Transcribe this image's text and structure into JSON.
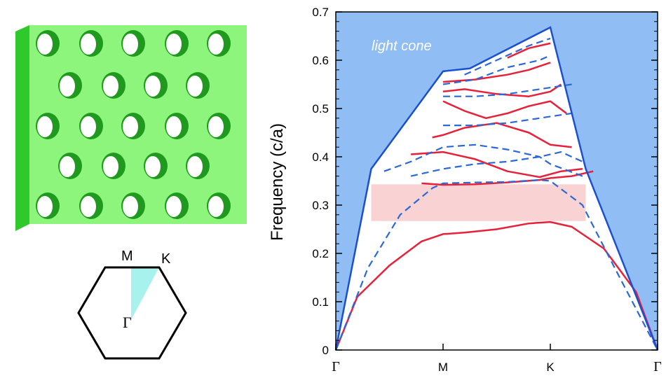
{
  "chart_data": {
    "type": "line",
    "title": "",
    "xlabel": "",
    "ylabel": "Frequency  (c/a)",
    "ylim": [
      0,
      0.7
    ],
    "yticks": [
      "0",
      "0.1",
      "0.2",
      "0.3",
      "0.4",
      "0.5",
      "0.6",
      "0.7"
    ],
    "k_points": [
      {
        "label": "Γ",
        "pos": 0,
        "greek": true
      },
      {
        "label": "M",
        "pos": 1,
        "greek": false
      },
      {
        "label": "K",
        "pos": 2,
        "greek": false
      },
      {
        "label": "Γ",
        "pos": 3,
        "greek": true
      }
    ],
    "light_cone": {
      "label": "light cone",
      "color": "#8fbdf4",
      "edge": [
        [
          0,
          0
        ],
        [
          0.33,
          0.375
        ],
        [
          1,
          0.577
        ],
        [
          1.25,
          0.583
        ],
        [
          1.55,
          0.617
        ],
        [
          2,
          0.668
        ],
        [
          2.33,
          0.375
        ],
        [
          3,
          0
        ]
      ]
    },
    "band_gap": {
      "range": [
        0.267,
        0.343
      ],
      "x_range": [
        0.33,
        2.33
      ],
      "color": "#f9d3d3"
    },
    "series": [
      {
        "style": "solid",
        "color": "#e8213a",
        "x": [
          0,
          0.2,
          0.5,
          0.8,
          1.0,
          1.2,
          1.5,
          1.8,
          2.0,
          2.2,
          2.5,
          2.8,
          3.0
        ],
        "y": [
          0,
          0.11,
          0.175,
          0.225,
          0.24,
          0.243,
          0.25,
          0.262,
          0.265,
          0.255,
          0.21,
          0.12,
          0
        ]
      },
      {
        "style": "solid",
        "color": "#e8213a",
        "x": [
          0.8,
          1.0,
          1.3,
          1.6,
          1.9,
          2.0,
          2.2,
          2.4
        ],
        "y": [
          0.345,
          0.342,
          0.343,
          0.347,
          0.352,
          0.356,
          0.36,
          0.37
        ]
      },
      {
        "style": "solid",
        "color": "#e8213a",
        "x": [
          0.7,
          1.0,
          1.3,
          1.6,
          1.9,
          2.1,
          2.3
        ],
        "y": [
          0.405,
          0.41,
          0.395,
          0.37,
          0.358,
          0.37,
          0.375
        ]
      },
      {
        "style": "solid",
        "color": "#e8213a",
        "x": [
          0.9,
          1.0,
          1.2,
          1.5,
          1.8,
          2.0,
          2.2
        ],
        "y": [
          0.44,
          0.445,
          0.46,
          0.47,
          0.45,
          0.425,
          0.42
        ]
      },
      {
        "style": "solid",
        "color": "#e8213a",
        "x": [
          1.0,
          1.2,
          1.4,
          1.6,
          1.8,
          2.0,
          2.15
        ],
        "y": [
          0.515,
          0.495,
          0.48,
          0.49,
          0.505,
          0.515,
          0.49
        ]
      },
      {
        "style": "solid",
        "color": "#e8213a",
        "x": [
          1.0,
          1.2,
          1.5,
          1.8,
          2.0,
          2.1
        ],
        "y": [
          0.535,
          0.54,
          0.53,
          0.525,
          0.535,
          0.55
        ]
      },
      {
        "style": "solid",
        "color": "#e8213a",
        "x": [
          1.0,
          1.3,
          1.6,
          1.8,
          2.0
        ],
        "y": [
          0.555,
          0.56,
          0.57,
          0.58,
          0.595
        ]
      },
      {
        "style": "solid",
        "color": "#e8213a",
        "x": [
          1.6,
          1.8,
          2.0
        ],
        "y": [
          0.605,
          0.625,
          0.635
        ]
      },
      {
        "style": "dashed",
        "color": "#2b68d8",
        "x": [
          0,
          0.3,
          0.6,
          0.9,
          1.0,
          1.3,
          1.6,
          1.9,
          2.0,
          2.3,
          2.6,
          3.0
        ],
        "y": [
          0,
          0.17,
          0.28,
          0.335,
          0.345,
          0.347,
          0.348,
          0.352,
          0.35,
          0.3,
          0.17,
          0
        ]
      },
      {
        "style": "dashed",
        "color": "#2b68d8",
        "x": [
          0.45,
          0.7,
          1.0,
          1.3,
          1.6,
          1.9,
          2.0,
          2.3
        ],
        "y": [
          0.37,
          0.39,
          0.42,
          0.425,
          0.415,
          0.4,
          0.385,
          0.36
        ]
      },
      {
        "style": "dashed",
        "color": "#2b68d8",
        "x": [
          0.7,
          1.0,
          1.3,
          1.6,
          1.9,
          2.1,
          2.3
        ],
        "y": [
          0.36,
          0.375,
          0.385,
          0.39,
          0.4,
          0.41,
          0.39
        ]
      },
      {
        "style": "dashed",
        "color": "#2b68d8",
        "x": [
          1.0,
          1.3,
          1.6,
          1.9,
          2.2
        ],
        "y": [
          0.465,
          0.465,
          0.47,
          0.48,
          0.49
        ]
      },
      {
        "style": "dashed",
        "color": "#2b68d8",
        "x": [
          1.0,
          1.3,
          1.6,
          1.9,
          2.2
        ],
        "y": [
          0.525,
          0.525,
          0.53,
          0.54,
          0.55
        ]
      },
      {
        "style": "dashed",
        "color": "#2b68d8",
        "x": [
          1.0,
          1.3,
          1.6,
          1.9,
          2.0
        ],
        "y": [
          0.55,
          0.56,
          0.585,
          0.6,
          0.61
        ]
      },
      {
        "style": "dashed",
        "color": "#2b68d8",
        "x": [
          1.2,
          1.5,
          1.8,
          2.0
        ],
        "y": [
          0.57,
          0.6,
          0.63,
          0.645
        ]
      }
    ]
  },
  "brillouin_zone": {
    "labels": {
      "m": "M",
      "k": "K",
      "gamma": "Γ"
    },
    "wedge_color": "#a8f2ee"
  },
  "slab": {
    "top_color": "#7fe472",
    "face_color": "#8ef57c",
    "side_color": "#2fc92b",
    "hole_rows": 5
  }
}
